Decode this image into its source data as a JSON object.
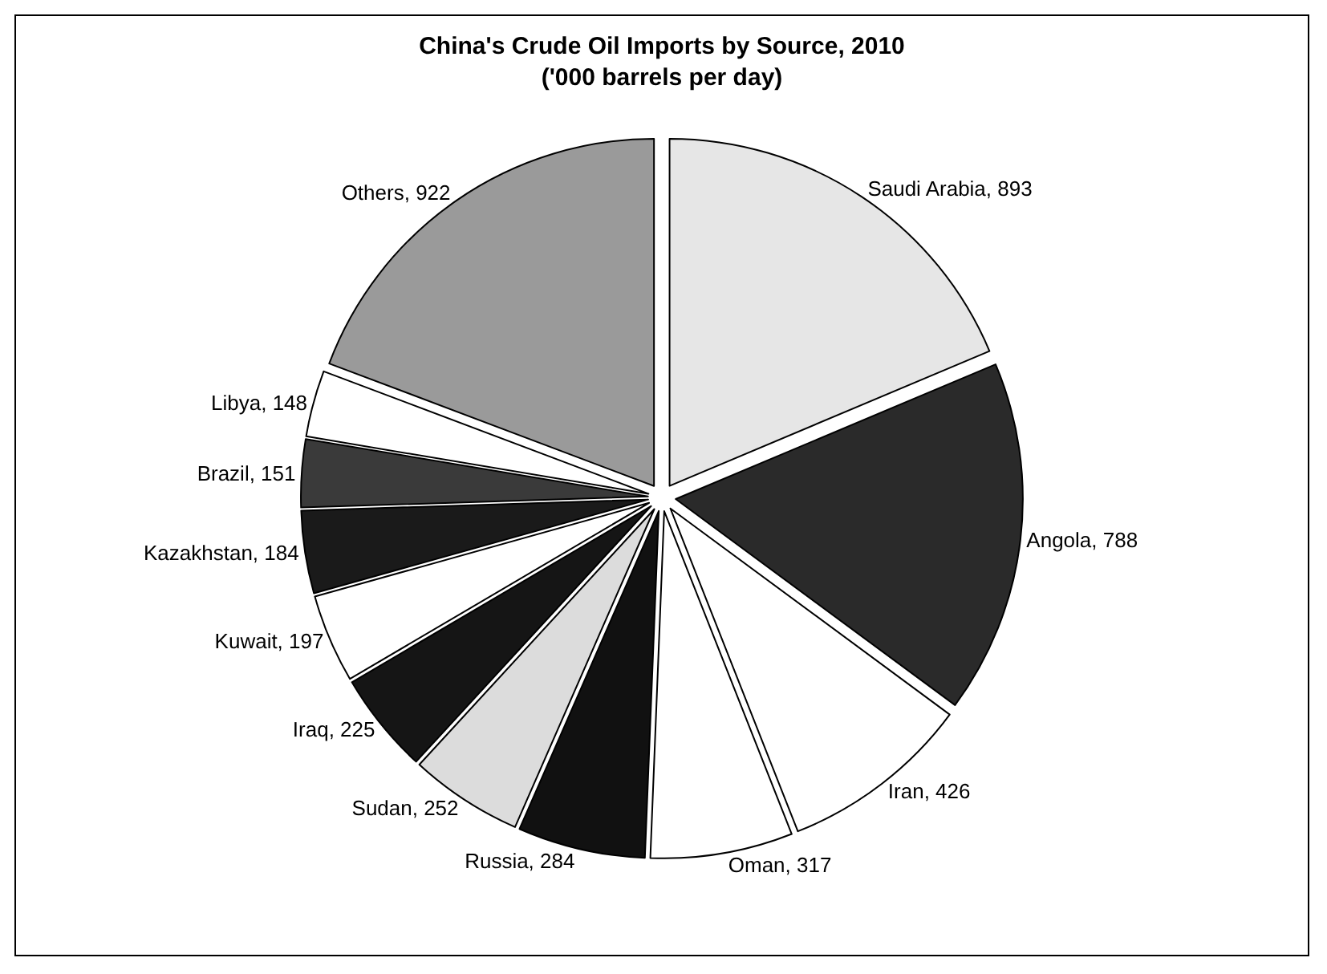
{
  "chart_data": {
    "type": "pie",
    "title": "China's Crude Oil Imports by Source, 2010",
    "subtitle": "('000 barrels per day)",
    "categories": [
      "Saudi Arabia",
      "Angola",
      "Iran",
      "Oman",
      "Russia",
      "Sudan",
      "Iraq",
      "Kuwait",
      "Kazakhstan",
      "Brazil",
      "Libya",
      "Others"
    ],
    "values": [
      893,
      788,
      426,
      317,
      284,
      252,
      225,
      197,
      184,
      151,
      148,
      922
    ],
    "colors": [
      "#e6e6e6",
      "#2a2a2a",
      "#ffffff",
      "#ffffff",
      "#111111",
      "#dcdcdc",
      "#151515",
      "#ffffff",
      "#1a1a1a",
      "#3a3a3a",
      "#ffffff",
      "#9a9a9a"
    ],
    "value_labels": [
      ", 893",
      ", 788",
      ", 426",
      ", 317",
      ", 284",
      ", 252",
      ", 225",
      ", 197",
      ", 184",
      ", 151",
      ", 148",
      ", 922"
    ],
    "legend": false
  }
}
